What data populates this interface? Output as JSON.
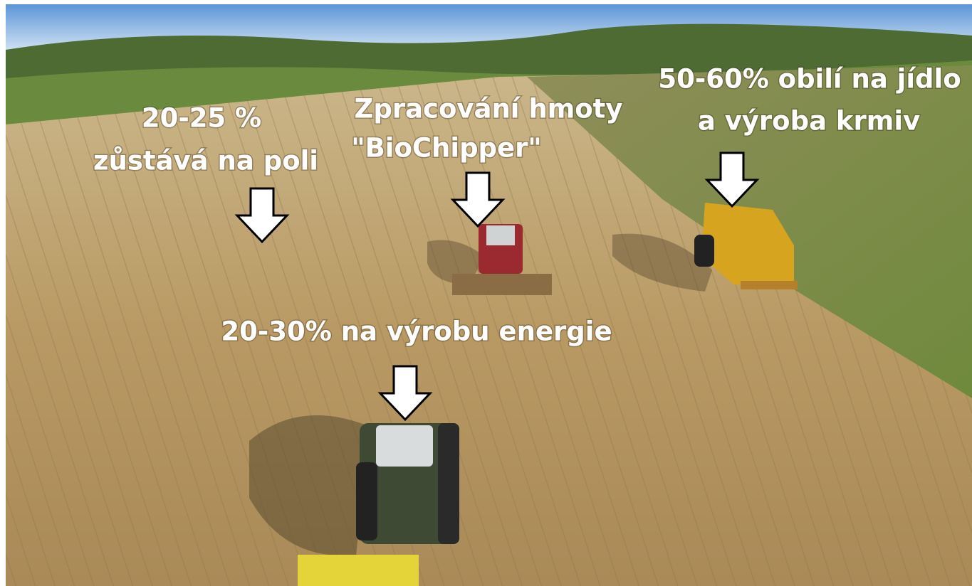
{
  "annotations": [
    {
      "lines": [
        "20-25 %",
        "zůstává na poli"
      ]
    },
    {
      "lines": [
        "Zpracování hmoty",
        "\"BioChipper\""
      ]
    },
    {
      "lines": [
        "50-60% obilí na jídlo",
        "a výroba krmiv"
      ]
    },
    {
      "lines": [
        "20-30% na výrobu energie"
      ]
    }
  ]
}
